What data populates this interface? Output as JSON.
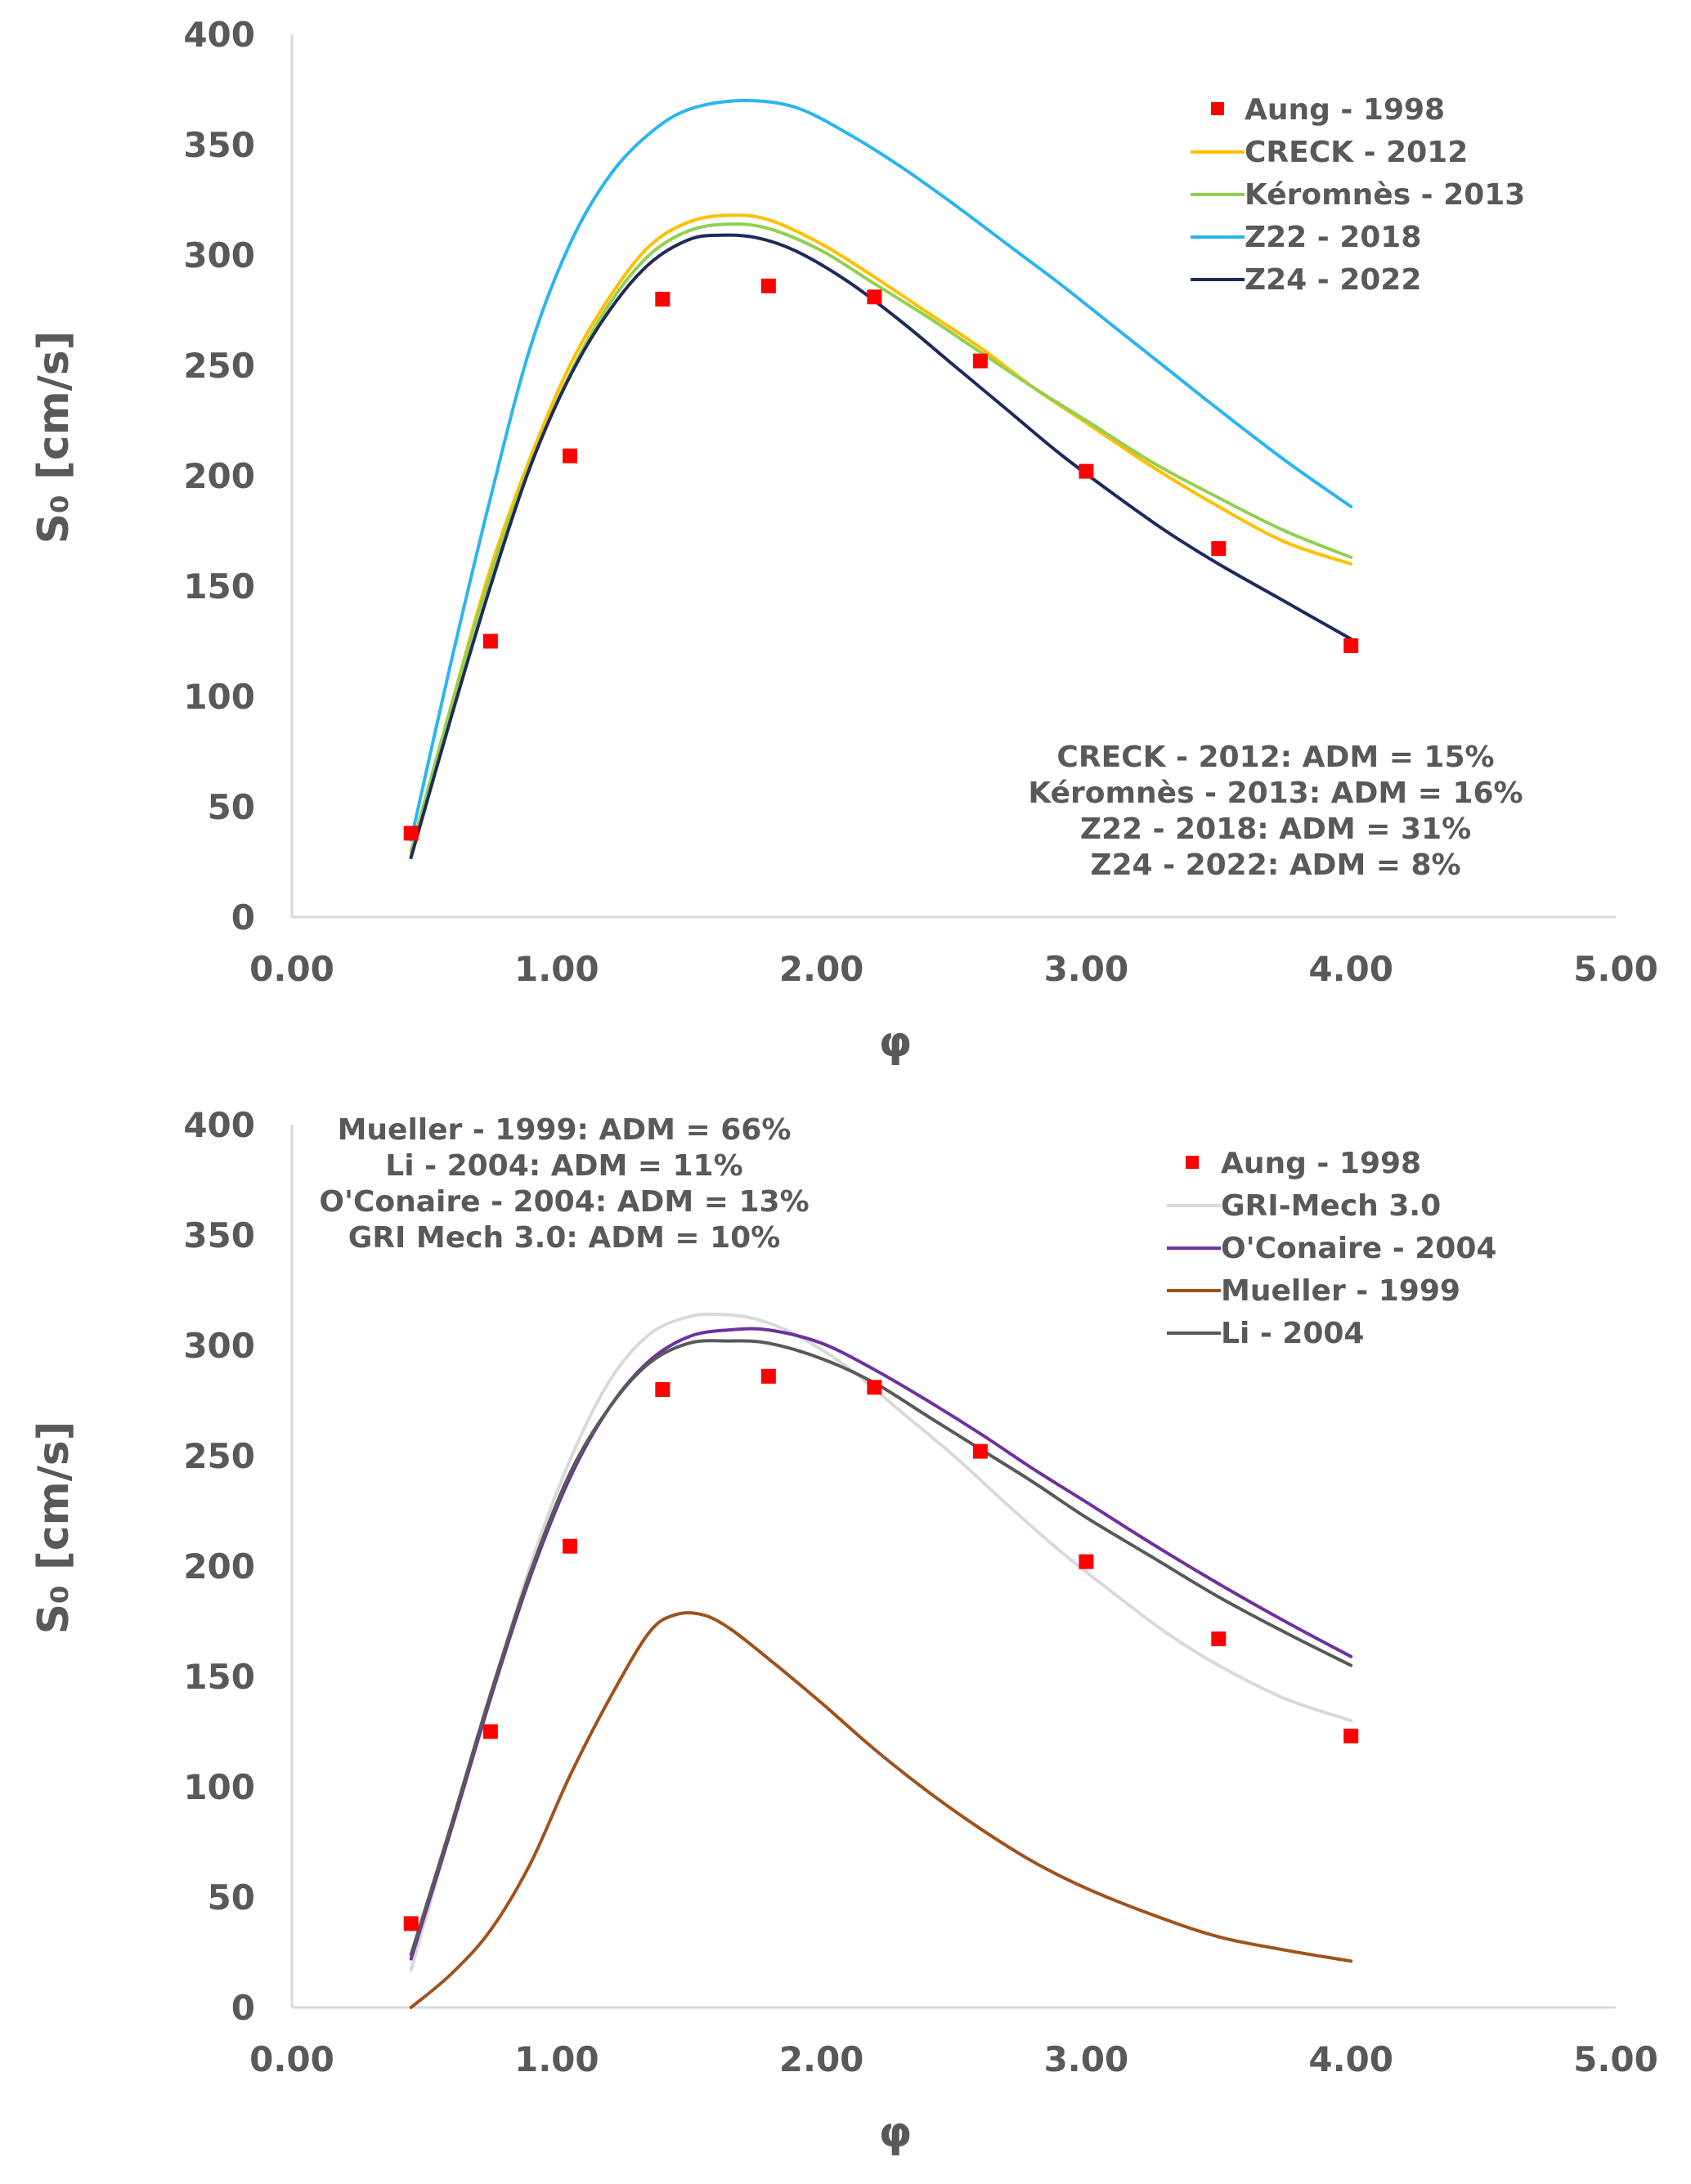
{
  "chart_data": [
    {
      "type": "line",
      "title": "",
      "xlabel": "φ",
      "ylabel": "S₀ [cm/s]",
      "xlim": [
        0,
        5
      ],
      "ylim": [
        0,
        400
      ],
      "xticks": [
        "0.00",
        "1.00",
        "2.00",
        "3.00",
        "4.00",
        "5.00"
      ],
      "yticks": [
        "0",
        "50",
        "100",
        "150",
        "200",
        "250",
        "300",
        "350",
        "400"
      ],
      "grid": false,
      "legend_position": "top-right",
      "scatter": {
        "name": "Aung - 1998",
        "color": "#ff0000",
        "x": [
          0.45,
          0.75,
          1.05,
          1.4,
          1.8,
          2.2,
          2.6,
          3.0,
          3.5,
          4.0
        ],
        "y": [
          38,
          125,
          209,
          280,
          286,
          281,
          252,
          202,
          167,
          123
        ]
      },
      "series": [
        {
          "name": "CRECK - 2012",
          "color": "#ffc000",
          "x": [
            0.45,
            0.6,
            0.75,
            0.9,
            1.05,
            1.2,
            1.35,
            1.5,
            1.65,
            1.8,
            2.0,
            2.2,
            2.4,
            2.6,
            2.8,
            3.0,
            3.25,
            3.5,
            3.75,
            4.0
          ],
          "y": [
            28,
            95,
            158,
            208,
            250,
            281,
            304,
            315,
            318,
            316,
            305,
            290,
            274,
            258,
            240,
            224,
            204,
            186,
            170,
            160
          ]
        },
        {
          "name": "Kéromnès - 2013",
          "color": "#92d050",
          "x": [
            0.45,
            0.6,
            0.75,
            0.9,
            1.05,
            1.2,
            1.35,
            1.5,
            1.65,
            1.8,
            2.0,
            2.2,
            2.4,
            2.6,
            2.8,
            3.0,
            3.25,
            3.5,
            3.75,
            4.0
          ],
          "y": [
            30,
            95,
            155,
            205,
            246,
            278,
            300,
            311,
            314,
            312,
            302,
            287,
            272,
            256,
            240,
            225,
            206,
            190,
            175,
            163
          ]
        },
        {
          "name": "Z22 - 2018",
          "color": "#2bb5f0",
          "x": [
            0.45,
            0.6,
            0.75,
            0.9,
            1.05,
            1.2,
            1.35,
            1.5,
            1.7,
            1.9,
            2.1,
            2.3,
            2.5,
            2.7,
            2.9,
            3.1,
            3.3,
            3.5,
            3.75,
            4.0
          ],
          "y": [
            35,
            115,
            190,
            258,
            305,
            336,
            355,
            366,
            370,
            367,
            355,
            340,
            323,
            305,
            287,
            268,
            249,
            230,
            207,
            186
          ]
        },
        {
          "name": "Z24 - 2022",
          "color": "#1f2a5c",
          "x": [
            0.45,
            0.6,
            0.75,
            0.9,
            1.05,
            1.2,
            1.35,
            1.5,
            1.62,
            1.75,
            1.9,
            2.1,
            2.3,
            2.5,
            2.7,
            2.9,
            3.1,
            3.3,
            3.5,
            3.75,
            4.0
          ],
          "y": [
            27,
            90,
            150,
            204,
            245,
            275,
            296,
            307,
            309,
            308,
            302,
            288,
            270,
            250,
            230,
            210,
            192,
            175,
            160,
            143,
            126
          ]
        }
      ],
      "annotations": [
        "CRECK - 2012: ADM = 15%",
        "Kéromnès - 2013: ADM = 16%",
        "Z22 - 2018: ADM = 31%",
        "Z24 - 2022: ADM = 8%"
      ]
    },
    {
      "type": "line",
      "title": "",
      "xlabel": "φ",
      "ylabel": "S₀ [cm/s]",
      "xlim": [
        0,
        5
      ],
      "ylim": [
        0,
        400
      ],
      "xticks": [
        "0.00",
        "1.00",
        "2.00",
        "3.00",
        "4.00",
        "5.00"
      ],
      "yticks": [
        "0",
        "50",
        "100",
        "150",
        "200",
        "250",
        "300",
        "350",
        "400"
      ],
      "grid": false,
      "legend_position": "top-right",
      "scatter": {
        "name": "Aung - 1998",
        "color": "#ff0000",
        "x": [
          0.45,
          0.75,
          1.05,
          1.4,
          1.8,
          2.2,
          2.6,
          3.0,
          3.5,
          4.0
        ],
        "y": [
          38,
          125,
          209,
          280,
          286,
          281,
          252,
          202,
          167,
          123
        ]
      },
      "series": [
        {
          "name": "GRI-Mech 3.0",
          "color": "#d9d9d9",
          "x": [
            0.45,
            0.6,
            0.75,
            0.9,
            1.05,
            1.2,
            1.35,
            1.5,
            1.62,
            1.75,
            1.9,
            2.1,
            2.3,
            2.5,
            2.7,
            2.9,
            3.1,
            3.3,
            3.5,
            3.75,
            4.0
          ],
          "y": [
            17,
            80,
            140,
            200,
            248,
            284,
            305,
            313,
            314,
            312,
            305,
            290,
            270,
            250,
            228,
            207,
            188,
            170,
            155,
            140,
            130
          ]
        },
        {
          "name": "O'Conaire - 2004",
          "color": "#7030a0",
          "x": [
            0.45,
            0.6,
            0.75,
            0.9,
            1.05,
            1.2,
            1.35,
            1.5,
            1.65,
            1.8,
            2.0,
            2.2,
            2.4,
            2.6,
            2.8,
            3.0,
            3.25,
            3.5,
            3.75,
            4.0
          ],
          "y": [
            22,
            80,
            140,
            195,
            240,
            272,
            293,
            304,
            307,
            307,
            301,
            289,
            275,
            260,
            244,
            229,
            210,
            192,
            175,
            159
          ]
        },
        {
          "name": "Mueller - 1999",
          "color": "#a0521d",
          "x": [
            0.45,
            0.6,
            0.75,
            0.9,
            1.05,
            1.2,
            1.35,
            1.45,
            1.55,
            1.65,
            1.8,
            2.0,
            2.2,
            2.4,
            2.6,
            2.8,
            3.0,
            3.25,
            3.5,
            3.75,
            4.0
          ],
          "y": [
            0,
            15,
            35,
            65,
            105,
            140,
            170,
            178,
            178,
            172,
            158,
            138,
            117,
            98,
            81,
            66,
            54,
            42,
            32,
            26,
            21
          ]
        },
        {
          "name": "Li - 2004",
          "color": "#595959",
          "x": [
            0.45,
            0.6,
            0.75,
            0.9,
            1.05,
            1.2,
            1.35,
            1.5,
            1.65,
            1.8,
            2.0,
            2.2,
            2.4,
            2.6,
            2.8,
            3.0,
            3.25,
            3.5,
            3.75,
            4.0
          ],
          "y": [
            24,
            82,
            142,
            197,
            242,
            272,
            292,
            301,
            302,
            301,
            294,
            283,
            268,
            253,
            238,
            222,
            204,
            186,
            170,
            155
          ]
        }
      ],
      "annotations": [
        "Mueller - 1999: ADM = 66%",
        "Li - 2004: ADM = 11%",
        "O'Conaire - 2004: ADM = 13%",
        "GRI Mech 3.0: ADM = 10%"
      ]
    }
  ]
}
